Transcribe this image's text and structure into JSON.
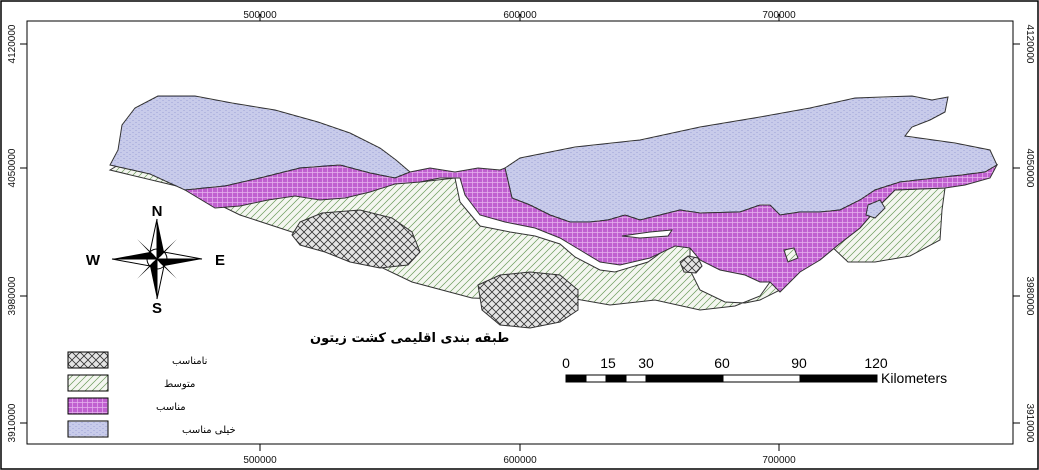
{
  "map": {
    "x_ticks": [
      "500000",
      "600000",
      "700000"
    ],
    "y_ticks": [
      "4120000",
      "4050000",
      "3980000",
      "3910000"
    ]
  },
  "compass": {
    "n": "N",
    "s": "S",
    "e": "E",
    "w": "W"
  },
  "legend": {
    "title": "طبقه بندی اقلیمی کشت زیتون",
    "items": [
      {
        "label": "نامناسب",
        "pattern": "crosshatch",
        "color": "#555555"
      },
      {
        "label": "متوسط",
        "pattern": "diagonal",
        "color": "#6a9a5a"
      },
      {
        "label": "مناسب",
        "pattern": "purple-dots",
        "color": "#c060d0"
      },
      {
        "label": "خیلی مناسب",
        "pattern": "blue-horizontal",
        "color": "#7f85c8"
      }
    ]
  },
  "scale_bar": {
    "labels": [
      "0",
      "15",
      "30",
      "60",
      "90",
      "120"
    ],
    "unit": "Kilometers"
  },
  "colors": {
    "purple_fill": "#c060d0",
    "blue_line": "#7f85c8",
    "green_line": "#6a9a5a"
  }
}
